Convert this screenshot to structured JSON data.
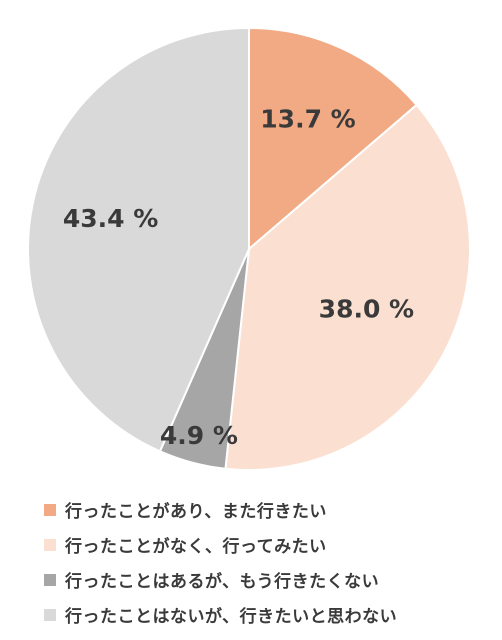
{
  "chart_data": {
    "type": "pie",
    "start": "12 o'clock, clockwise",
    "slices": [
      {
        "label": "行ったことがあり、また行きたい",
        "value": 13.7,
        "display": "13.7 %",
        "color": "#f2aa84"
      },
      {
        "label": "行ったことがなく、行ってみたい",
        "value": 38.0,
        "display": "38.0 %",
        "color": "#fbe0d2"
      },
      {
        "label": "行ったことはあるが、もう行きたくない",
        "value": 4.9,
        "display": "4.9 %",
        "color": "#a6a6a6"
      },
      {
        "label": "行ったことはないが、行きたいと思わない",
        "value": 43.4,
        "display": "43.4 %",
        "color": "#d9d9d9"
      }
    ],
    "legend_position": "bottom-left"
  }
}
